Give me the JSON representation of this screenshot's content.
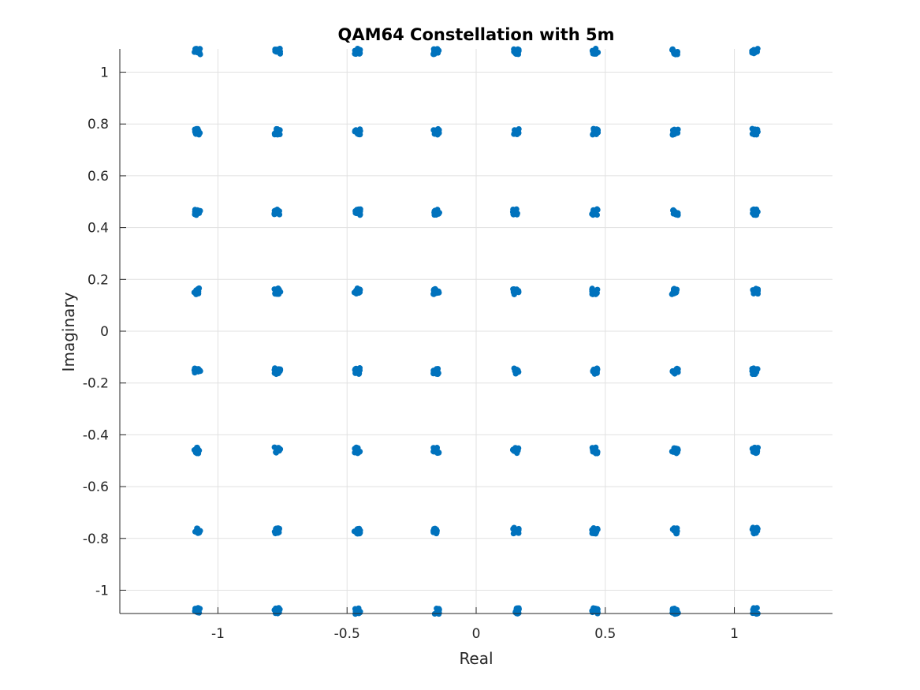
{
  "chart_data": {
    "type": "scatter",
    "title": "QAM64 Constellation with 5m",
    "xlabel": "Real",
    "ylabel": "Imaginary",
    "xlim": [
      -1.38,
      1.38
    ],
    "ylim": [
      -1.09,
      1.09
    ],
    "grid": true,
    "legend": "none",
    "point_color": "#0072BD",
    "grid_color": "#e1e1e1",
    "axis_color": "#262626",
    "x_ticks": [
      -1,
      -0.5,
      0,
      0.5,
      1
    ],
    "x_tick_labels": [
      "-1",
      "-0.5",
      "0",
      "0.5",
      "1"
    ],
    "y_ticks": [
      -1,
      -0.8,
      -0.6,
      -0.4,
      -0.2,
      0,
      0.2,
      0.4,
      0.6,
      0.8,
      1
    ],
    "y_tick_labels": [
      "-1",
      "-0.8",
      "-0.6",
      "-0.4",
      "-0.2",
      "0",
      "0.2",
      "0.4",
      "0.6",
      "0.8",
      "1"
    ],
    "constellation_levels": [
      -1.08,
      -0.77,
      -0.46,
      -0.154,
      0.154,
      0.46,
      0.77,
      1.08
    ],
    "cluster_spread": 0.012
  }
}
